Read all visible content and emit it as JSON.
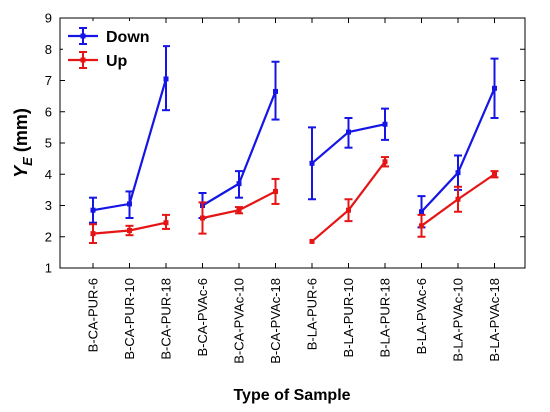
{
  "chart_data": {
    "type": "line",
    "title": "",
    "xlabel": "Type of Sample",
    "ylabel": {
      "main": "Y",
      "sub": "E",
      "unit": " (mm)"
    },
    "ylim": [
      1,
      9
    ],
    "yticks": [
      1,
      2,
      3,
      4,
      5,
      6,
      7,
      8,
      9
    ],
    "grid": false,
    "legend_position": "top-left",
    "categories": [
      "B-CA-PUR-6",
      "B-CA-PUR-10",
      "B-CA-PUR-18",
      "B-CA-PVAc-6",
      "B-CA-PVAc-10",
      "B-CA-PVAc-18",
      "B-LA-PUR-6",
      "B-LA-PUR-10",
      "B-LA-PUR-18",
      "B-LA-PVAc-6",
      "B-LA-PVAc-10",
      "B-LA-PVAc-18"
    ],
    "groups": [
      [
        0,
        1,
        2
      ],
      [
        3,
        4,
        5
      ],
      [
        6,
        7,
        8
      ],
      [
        9,
        10,
        11
      ]
    ],
    "series": [
      {
        "name": "Down",
        "color": "#1515e6",
        "values": [
          2.85,
          3.05,
          7.05,
          3.0,
          3.7,
          6.65,
          4.35,
          5.35,
          5.6,
          2.8,
          4.05,
          6.75
        ],
        "error_low": [
          2.45,
          2.6,
          6.05,
          2.6,
          3.25,
          5.75,
          3.2,
          4.85,
          5.1,
          2.3,
          3.5,
          5.8
        ],
        "error_high": [
          3.25,
          3.45,
          8.1,
          3.4,
          4.1,
          7.6,
          5.5,
          5.8,
          6.1,
          3.3,
          4.6,
          7.7
        ]
      },
      {
        "name": "Up",
        "color": "#e61515",
        "values": [
          2.1,
          2.2,
          2.45,
          2.6,
          2.85,
          3.45,
          1.85,
          2.85,
          4.4,
          2.35,
          3.2,
          4.0
        ],
        "error_low": [
          1.8,
          2.05,
          2.25,
          2.1,
          2.75,
          3.05,
          null,
          2.5,
          4.25,
          2.0,
          2.8,
          3.9
        ],
        "error_high": [
          2.4,
          2.35,
          2.7,
          3.1,
          2.95,
          3.85,
          null,
          3.2,
          4.55,
          2.7,
          3.6,
          4.1
        ]
      }
    ]
  }
}
